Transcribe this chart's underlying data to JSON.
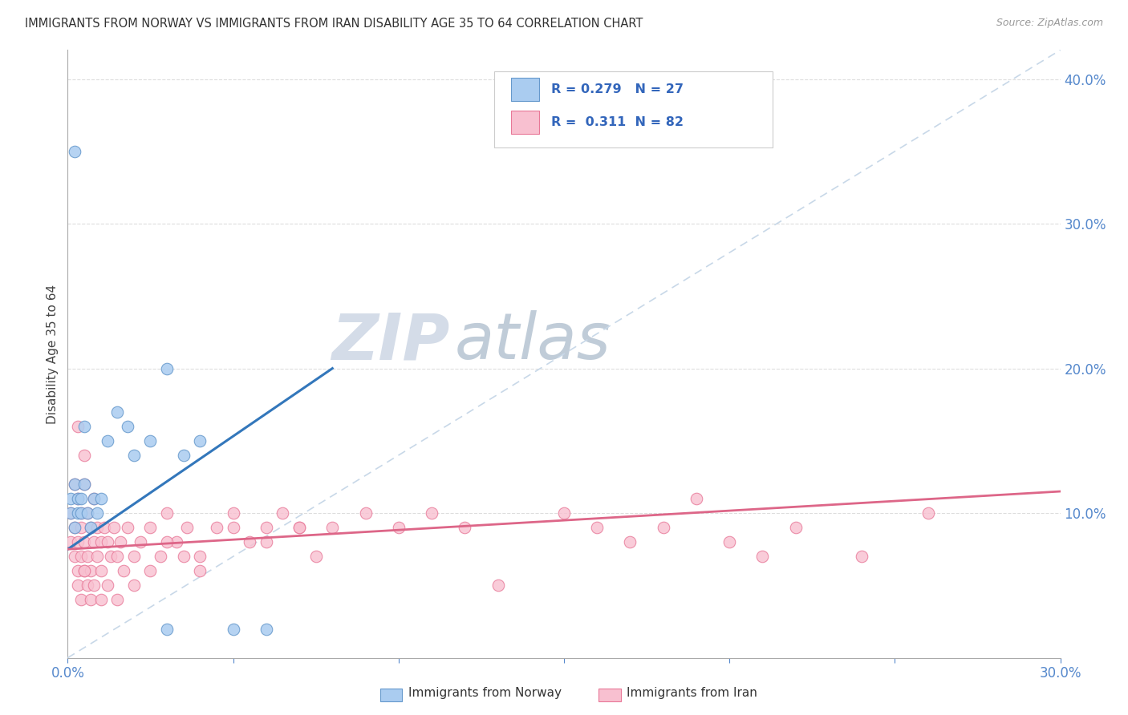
{
  "title": "IMMIGRANTS FROM NORWAY VS IMMIGRANTS FROM IRAN DISABILITY AGE 35 TO 64 CORRELATION CHART",
  "source": "Source: ZipAtlas.com",
  "ylabel": "Disability Age 35 to 64",
  "xmin": 0.0,
  "xmax": 0.3,
  "ymin": 0.0,
  "ymax": 0.42,
  "right_yticks": [
    0.1,
    0.2,
    0.3,
    0.4
  ],
  "right_yticklabels": [
    "10.0%",
    "20.0%",
    "30.0%",
    "40.0%"
  ],
  "norway_color": "#aaccf0",
  "norway_edge_color": "#6699cc",
  "iran_color": "#f8c0d0",
  "iran_edge_color": "#e87898",
  "norway_line_color": "#3377bb",
  "iran_line_color": "#dd6688",
  "ref_line_color": "#c8d8e8",
  "watermark_zip_color": "#d0d8e8",
  "watermark_atlas_color": "#b8c8d8",
  "norway_R": 0.279,
  "norway_N": 27,
  "iran_R": 0.311,
  "iran_N": 82,
  "norway_trend_x0": 0.0,
  "norway_trend_y0": 0.075,
  "norway_trend_x1": 0.08,
  "norway_trend_y1": 0.2,
  "iran_trend_x0": 0.0,
  "iran_trend_y0": 0.075,
  "iran_trend_x1": 0.3,
  "iran_trend_y1": 0.115,
  "norway_x": [
    0.001,
    0.001,
    0.002,
    0.002,
    0.003,
    0.003,
    0.004,
    0.004,
    0.005,
    0.005,
    0.006,
    0.007,
    0.008,
    0.009,
    0.01,
    0.012,
    0.015,
    0.018,
    0.02,
    0.025,
    0.03,
    0.035,
    0.04,
    0.05,
    0.06,
    0.002,
    0.03
  ],
  "norway_y": [
    0.1,
    0.11,
    0.09,
    0.12,
    0.1,
    0.11,
    0.1,
    0.11,
    0.16,
    0.12,
    0.1,
    0.09,
    0.11,
    0.1,
    0.11,
    0.15,
    0.17,
    0.16,
    0.14,
    0.15,
    0.2,
    0.14,
    0.15,
    0.02,
    0.02,
    0.35,
    0.02
  ],
  "iran_x": [
    0.001,
    0.001,
    0.002,
    0.002,
    0.002,
    0.003,
    0.003,
    0.003,
    0.004,
    0.004,
    0.004,
    0.005,
    0.005,
    0.005,
    0.006,
    0.006,
    0.007,
    0.007,
    0.008,
    0.008,
    0.009,
    0.009,
    0.01,
    0.01,
    0.011,
    0.012,
    0.013,
    0.014,
    0.015,
    0.016,
    0.017,
    0.018,
    0.02,
    0.022,
    0.025,
    0.028,
    0.03,
    0.033,
    0.036,
    0.04,
    0.045,
    0.05,
    0.055,
    0.06,
    0.065,
    0.07,
    0.075,
    0.08,
    0.09,
    0.1,
    0.11,
    0.12,
    0.13,
    0.15,
    0.16,
    0.17,
    0.18,
    0.19,
    0.2,
    0.21,
    0.22,
    0.24,
    0.003,
    0.004,
    0.005,
    0.006,
    0.007,
    0.008,
    0.01,
    0.012,
    0.015,
    0.02,
    0.025,
    0.03,
    0.035,
    0.04,
    0.05,
    0.06,
    0.07,
    0.26,
    0.005,
    0.003
  ],
  "iran_y": [
    0.1,
    0.08,
    0.12,
    0.09,
    0.07,
    0.11,
    0.08,
    0.06,
    0.1,
    0.07,
    0.09,
    0.12,
    0.08,
    0.06,
    0.1,
    0.07,
    0.09,
    0.06,
    0.08,
    0.11,
    0.07,
    0.09,
    0.08,
    0.06,
    0.09,
    0.08,
    0.07,
    0.09,
    0.07,
    0.08,
    0.06,
    0.09,
    0.07,
    0.08,
    0.09,
    0.07,
    0.1,
    0.08,
    0.09,
    0.07,
    0.09,
    0.1,
    0.08,
    0.09,
    0.1,
    0.09,
    0.07,
    0.09,
    0.1,
    0.09,
    0.1,
    0.09,
    0.05,
    0.1,
    0.09,
    0.08,
    0.09,
    0.11,
    0.08,
    0.07,
    0.09,
    0.07,
    0.05,
    0.04,
    0.06,
    0.05,
    0.04,
    0.05,
    0.04,
    0.05,
    0.04,
    0.05,
    0.06,
    0.08,
    0.07,
    0.06,
    0.09,
    0.08,
    0.09,
    0.1,
    0.14,
    0.16
  ]
}
